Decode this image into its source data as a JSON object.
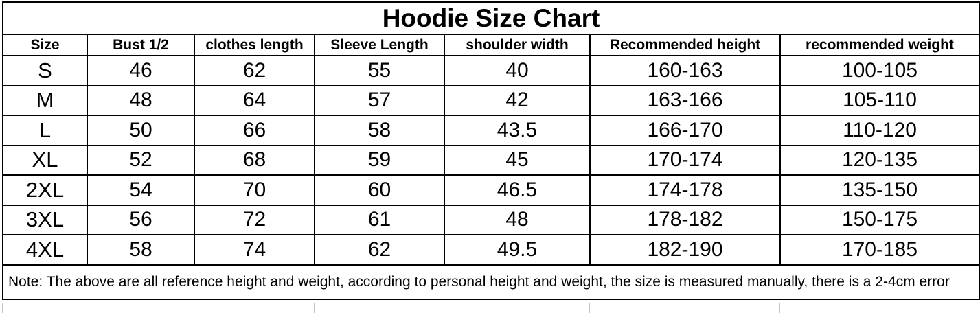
{
  "title": "Hoodie Size Chart",
  "table": {
    "columns": [
      {
        "label": "Size"
      },
      {
        "label": "Bust 1/2"
      },
      {
        "label": "clothes length"
      },
      {
        "label": "Sleeve Length"
      },
      {
        "label": "shoulder width"
      },
      {
        "label": "Recommended height"
      },
      {
        "label": "recommended weight"
      }
    ],
    "rows": [
      [
        "S",
        "46",
        "62",
        "55",
        "40",
        "160-163",
        "100-105"
      ],
      [
        "M",
        "48",
        "64",
        "57",
        "42",
        "163-166",
        "105-110"
      ],
      [
        "L",
        "50",
        "66",
        "58",
        "43.5",
        "166-170",
        "110-120"
      ],
      [
        "XL",
        "52",
        "68",
        "59",
        "45",
        "170-174",
        "120-135"
      ],
      [
        "2XL",
        "54",
        "70",
        "60",
        "46.5",
        "174-178",
        "135-150"
      ],
      [
        "3XL",
        "56",
        "72",
        "61",
        "48",
        "178-182",
        "150-175"
      ],
      [
        "4XL",
        "58",
        "74",
        "62",
        "49.5",
        "182-190",
        "170-185"
      ]
    ],
    "note": "Note: The above are all reference height and weight, according to personal height and weight, the size is measured manually, there is a 2-4cm error"
  },
  "colors": {
    "text": "#000000",
    "border": "#000000",
    "background": "#ffffff",
    "gridline_stub": "#c3c3c3"
  }
}
